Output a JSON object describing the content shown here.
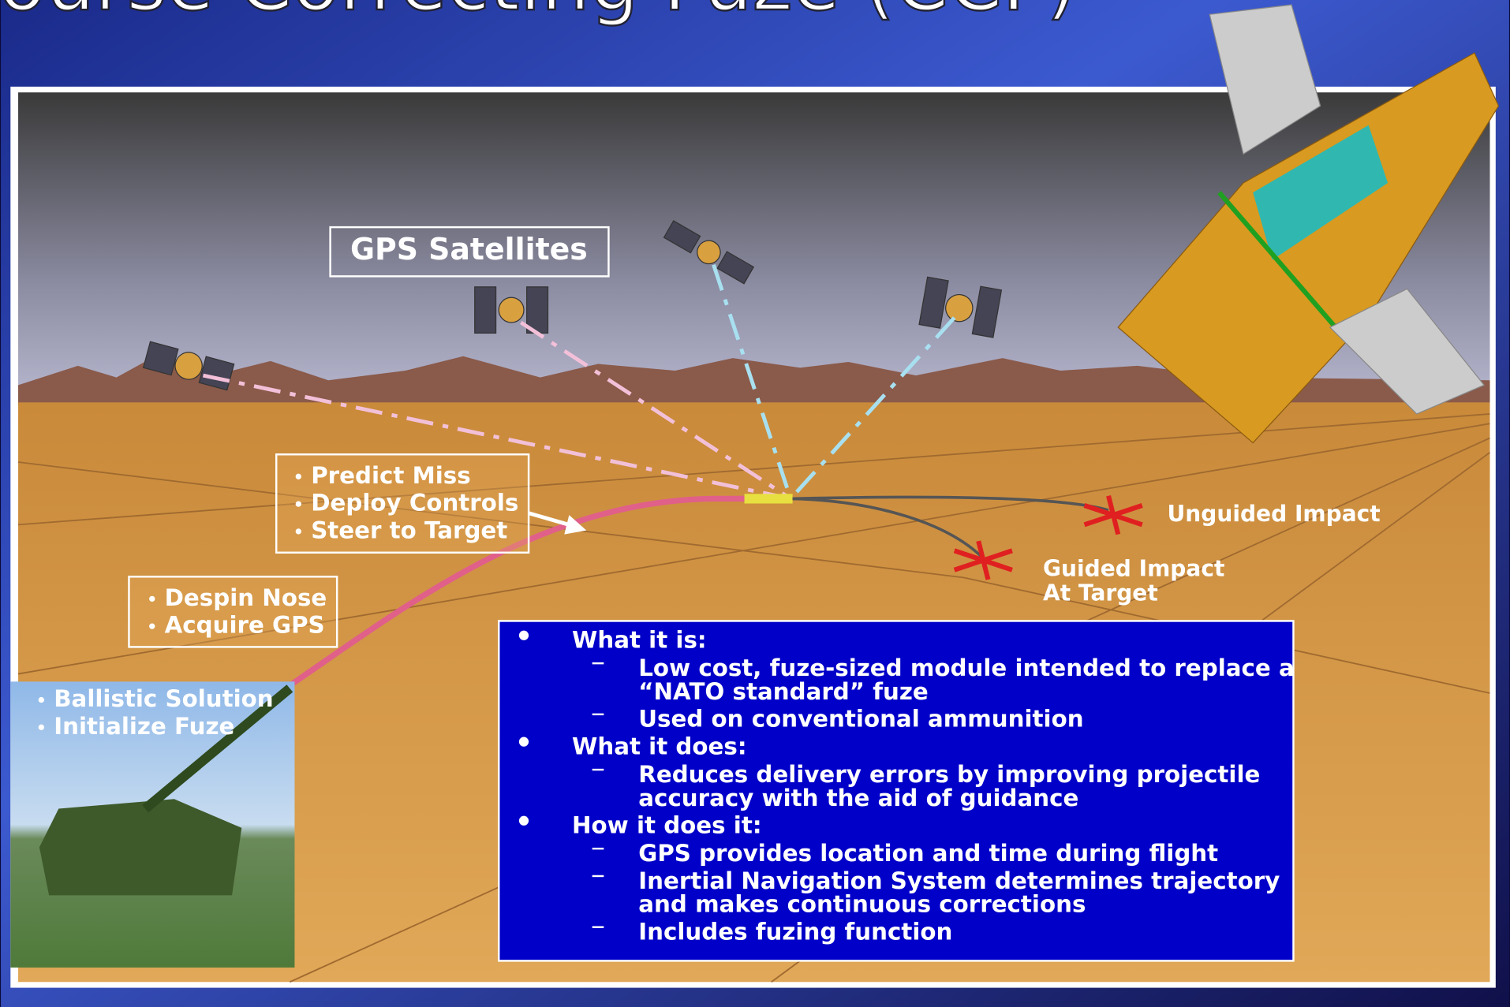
{
  "title": "Course Correcting Fuze (CCF)",
  "satellites_label": "GPS Satellites",
  "callouts": [
    {
      "items": [
        "Predict Miss",
        "Deploy Controls",
        "Steer to Target"
      ]
    },
    {
      "items": [
        "Despin Nose",
        "Acquire GPS"
      ]
    },
    {
      "items": [
        "Ballistic Solution",
        "Initialize Fuze"
      ]
    }
  ],
  "impacts": {
    "unguided": "Unguided Impact",
    "guided": [
      "Guided Impact",
      "At Target"
    ]
  },
  "info": [
    {
      "heading": "What it is:",
      "items": [
        [
          "Low cost, fuze-sized module intended to replace a",
          "“NATO standard” fuze"
        ],
        [
          "Used on conventional ammunition"
        ]
      ]
    },
    {
      "heading": "What it does:",
      "items": [
        [
          "Reduces delivery errors by improving projectile",
          "accuracy with the aid of guidance"
        ]
      ]
    },
    {
      "heading": "How it does it:",
      "items": [
        [
          "GPS provides location and time during flight"
        ],
        [
          "Inertial Navigation System determines trajectory",
          "and makes continuous corrections"
        ],
        [
          "Includes fuzing function"
        ]
      ]
    }
  ]
}
